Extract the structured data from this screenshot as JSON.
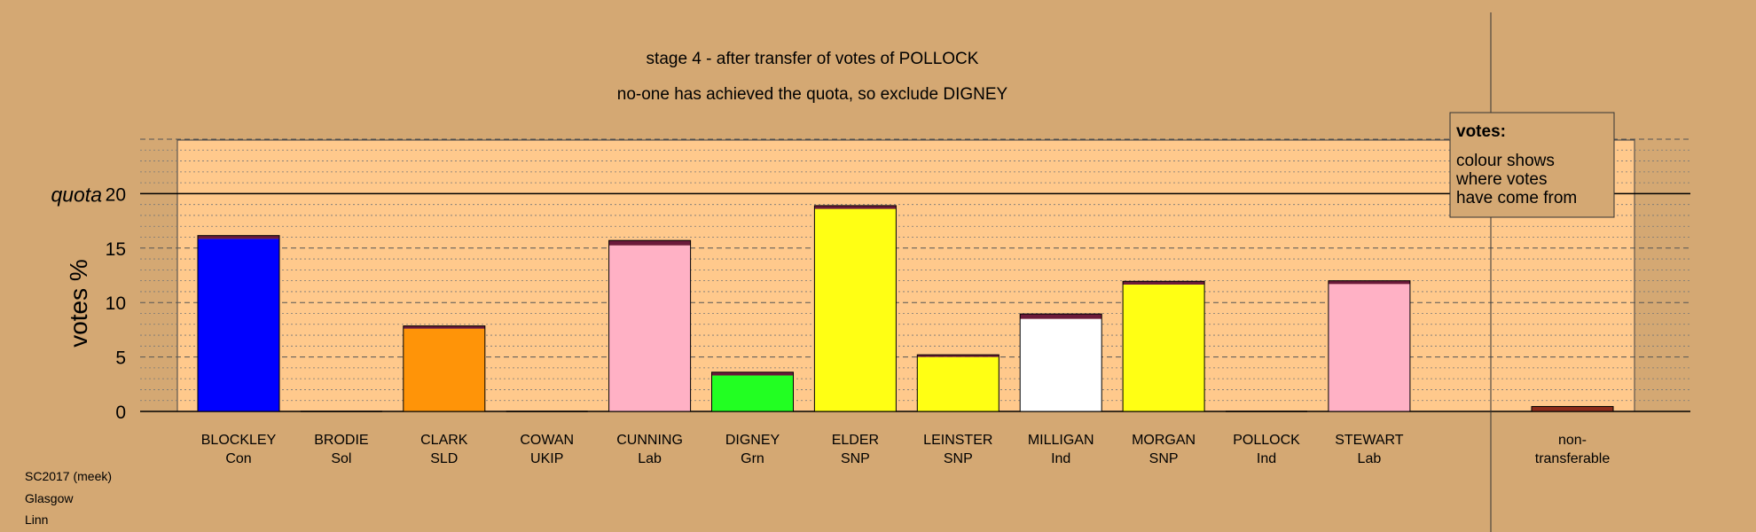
{
  "chart_data": {
    "type": "bar",
    "title": "stage 4 - after transfer of votes of POLLOCK",
    "subtitle": "no-one has achieved the quota, so exclude DIGNEY",
    "ylabel": "votes %",
    "quota_label": "quota",
    "quota": 20,
    "ylim": [
      0,
      25
    ],
    "yticks": [
      0,
      5,
      10,
      15,
      20
    ],
    "grid": true,
    "candidates": [
      {
        "name": "BLOCKLEY",
        "party": "Con",
        "color": "#0000ff",
        "base": 15.85,
        "transfer": 0.3
      },
      {
        "name": "BRODIE",
        "party": "Sol",
        "color": "#d4a873",
        "base": 0,
        "transfer": 0
      },
      {
        "name": "CLARK",
        "party": "SLD",
        "color": "#ff9408",
        "base": 7.6,
        "transfer": 0.25
      },
      {
        "name": "COWAN",
        "party": "UKIP",
        "color": "#d4a873",
        "base": 0,
        "transfer": 0
      },
      {
        "name": "CUNNING",
        "party": "Lab",
        "color": "#ffb1c5",
        "base": 15.25,
        "transfer": 0.45
      },
      {
        "name": "DIGNEY",
        "party": "Grn",
        "color": "#22ff22",
        "base": 3.3,
        "transfer": 0.3
      },
      {
        "name": "ELDER",
        "party": "SNP",
        "color": "#ffff14",
        "base": 18.6,
        "transfer": 0.3
      },
      {
        "name": "LEINSTER",
        "party": "SNP",
        "color": "#ffff14",
        "base": 5.0,
        "transfer": 0.2
      },
      {
        "name": "MILLIGAN",
        "party": "Ind",
        "color": "#ffffff",
        "base": 8.5,
        "transfer": 0.45
      },
      {
        "name": "MORGAN",
        "party": "SNP",
        "color": "#ffff14",
        "base": 11.65,
        "transfer": 0.3
      },
      {
        "name": "POLLOCK",
        "party": "Ind",
        "color": "#d4a873",
        "base": 0,
        "transfer": 0
      },
      {
        "name": "STEWART",
        "party": "Lab",
        "color": "#ffb1c5",
        "base": 11.7,
        "transfer": 0.3
      }
    ],
    "nontransferable": {
      "label_line1": "non-",
      "label_line2": "transferable",
      "value": 0.45,
      "color": "#8b2b1a"
    },
    "transfer_color": "#6b1a3a",
    "legend": {
      "title": "votes:",
      "lines": [
        "colour shows",
        "where votes",
        "have come from"
      ],
      "placement": "top-right"
    }
  },
  "footer": {
    "lines": [
      "SC2017 (meek)",
      "Glasgow",
      "Linn"
    ]
  }
}
